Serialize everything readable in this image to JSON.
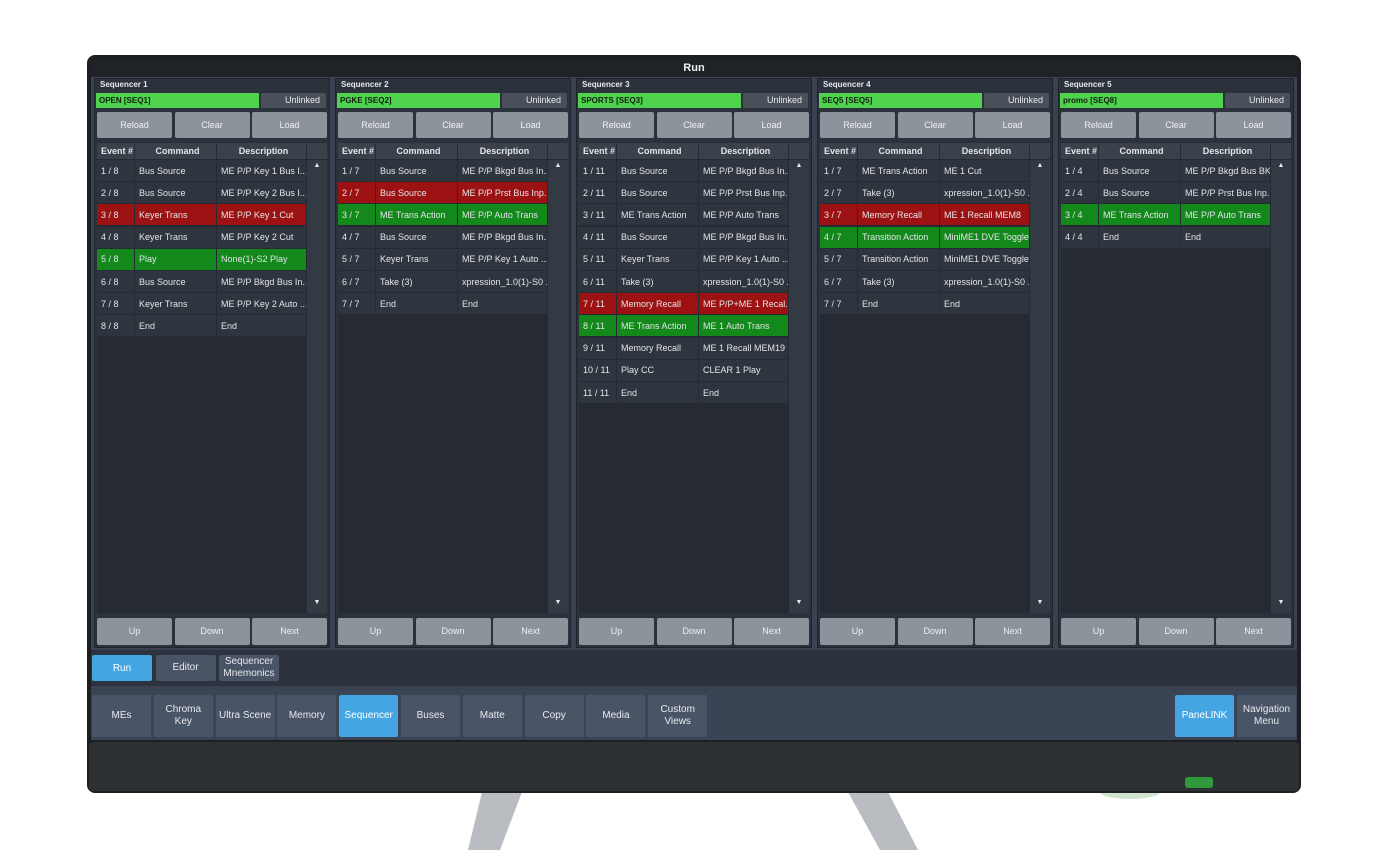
{
  "title": "Run",
  "columns": [
    "Event #",
    "Command",
    "Description"
  ],
  "link_label": "Unlinked",
  "panel_buttons": [
    "Reload",
    "Clear",
    "Load"
  ],
  "footer_buttons": [
    "Up",
    "Down",
    "Next"
  ],
  "sequencers": [
    {
      "label": "Sequencer 1",
      "name": "OPEN [SEQ1]",
      "rows": [
        {
          "event": "1 / 8",
          "command": "Bus Source",
          "description": "ME P/P Key 1 Bus I..."
        },
        {
          "event": "2 / 8",
          "command": "Bus Source",
          "description": "ME P/P Key 2 Bus I..."
        },
        {
          "event": "3 / 8",
          "command": "Keyer Trans",
          "description": "ME P/P Key 1 Cut",
          "color": "#9c1212"
        },
        {
          "event": "4 / 8",
          "command": "Keyer Trans",
          "description": "ME P/P Key 2 Cut"
        },
        {
          "event": "5 / 8",
          "command": "Play",
          "description": "None(1)-S2 Play",
          "color": "#12891a"
        },
        {
          "event": "6 / 8",
          "command": "Bus Source",
          "description": "ME P/P Bkgd Bus In..."
        },
        {
          "event": "7 / 8",
          "command": "Keyer Trans",
          "description": "ME P/P Key 2 Auto ..."
        },
        {
          "event": "8 / 8",
          "command": "End",
          "description": "End"
        }
      ]
    },
    {
      "label": "Sequencer 2",
      "name": "PGKE [SEQ2]",
      "rows": [
        {
          "event": "1 / 7",
          "command": "Bus Source",
          "description": "ME P/P Bkgd Bus In..."
        },
        {
          "event": "2 / 7",
          "command": "Bus Source",
          "description": "ME P/P Prst Bus Inp...",
          "color": "#9c1212"
        },
        {
          "event": "3 / 7",
          "command": "ME Trans Action",
          "description": "ME P/P Auto Trans",
          "color": "#12891a"
        },
        {
          "event": "4 / 7",
          "command": "Bus Source",
          "description": "ME P/P Bkgd Bus In..."
        },
        {
          "event": "5 / 7",
          "command": "Keyer Trans",
          "description": "ME P/P Key 1 Auto ..."
        },
        {
          "event": "6 / 7",
          "command": "Take (3)",
          "description": "xpression_1.0(1)-S0 ..."
        },
        {
          "event": "7 / 7",
          "command": "End",
          "description": "End"
        }
      ]
    },
    {
      "label": "Sequencer 3",
      "name": "SPORTS [SEQ3]",
      "rows": [
        {
          "event": "1 / 11",
          "command": "Bus Source",
          "description": "ME P/P Bkgd Bus In..."
        },
        {
          "event": "2 / 11",
          "command": "Bus Source",
          "description": "ME P/P Prst Bus Inp..."
        },
        {
          "event": "3 / 11",
          "command": "ME Trans Action",
          "description": "ME P/P Auto Trans"
        },
        {
          "event": "4 / 11",
          "command": "Bus Source",
          "description": "ME P/P Bkgd Bus In..."
        },
        {
          "event": "5 / 11",
          "command": "Keyer Trans",
          "description": "ME P/P Key 1 Auto ..."
        },
        {
          "event": "6 / 11",
          "command": "Take (3)",
          "description": "xpression_1.0(1)-S0 ..."
        },
        {
          "event": "7 / 11",
          "command": "Memory Recall",
          "description": "ME P/P+ME 1 Recal...",
          "color": "#9c1212"
        },
        {
          "event": "8 / 11",
          "command": "ME Trans Action",
          "description": "ME 1 Auto Trans",
          "color": "#12891a"
        },
        {
          "event": "9 / 11",
          "command": "Memory Recall",
          "description": "ME 1 Recall MEM19"
        },
        {
          "event": "10 / 11",
          "command": "Play CC",
          "description": "CLEAR 1 Play"
        },
        {
          "event": "11 / 11",
          "command": "End",
          "description": "End"
        }
      ]
    },
    {
      "label": "Sequencer 4",
      "name": "SEQ5 [SEQ5]",
      "rows": [
        {
          "event": "1 / 7",
          "command": "ME Trans Action",
          "description": "ME 1 Cut"
        },
        {
          "event": "2 / 7",
          "command": "Take (3)",
          "description": "xpression_1.0(1)-S0 ..."
        },
        {
          "event": "3 / 7",
          "command": "Memory Recall",
          "description": "ME 1 Recall MEM8",
          "color": "#9c1212"
        },
        {
          "event": "4 / 7",
          "command": "Transition Action",
          "description": "MiniME1 DVE Toggle...",
          "color": "#12891a"
        },
        {
          "event": "5 / 7",
          "command": "Transition Action",
          "description": "MiniME1 DVE Toggle..."
        },
        {
          "event": "6 / 7",
          "command": "Take (3)",
          "description": "xpression_1.0(1)-S0 ..."
        },
        {
          "event": "7 / 7",
          "command": "End",
          "description": "End"
        }
      ]
    },
    {
      "label": "Sequencer 5",
      "name": "promo [SEQ8]",
      "rows": [
        {
          "event": "1 / 4",
          "command": "Bus Source",
          "description": "ME P/P Bkgd Bus BK"
        },
        {
          "event": "2 / 4",
          "command": "Bus Source",
          "description": "ME P/P Prst Bus Inp..."
        },
        {
          "event": "3 / 4",
          "command": "ME Trans Action",
          "description": "ME P/P Auto Trans",
          "color": "#12891a"
        },
        {
          "event": "4 / 4",
          "command": "End",
          "description": "End"
        }
      ]
    }
  ],
  "tabs": [
    {
      "label": "Run",
      "active": true
    },
    {
      "label": "Editor"
    },
    {
      "label": "Sequencer Mnemonics"
    }
  ],
  "nav": [
    {
      "label": "MEs"
    },
    {
      "label": "Chroma Key"
    },
    {
      "label": "Ultra Scene"
    },
    {
      "label": "Memory"
    },
    {
      "label": "Sequencer",
      "active": true
    },
    {
      "label": "Buses"
    },
    {
      "label": "Matte"
    },
    {
      "label": "Copy"
    },
    {
      "label": "Media"
    },
    {
      "label": "Custom Views"
    }
  ],
  "nav_right": [
    {
      "label": "PaneLINK",
      "active": true
    },
    {
      "label": "Navigation Menu"
    }
  ]
}
